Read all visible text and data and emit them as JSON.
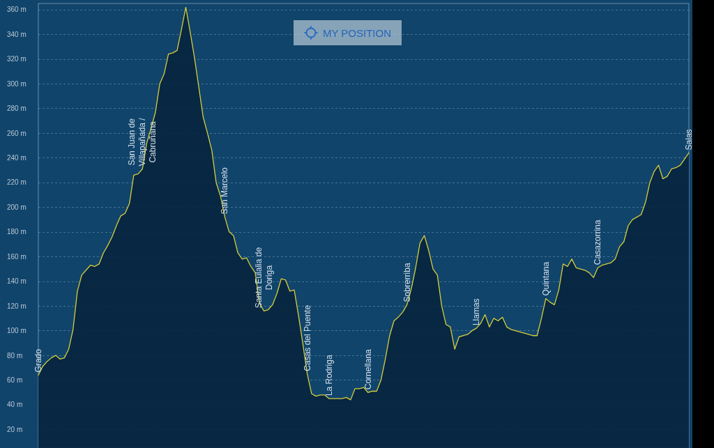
{
  "chart_data": {
    "type": "area",
    "categories": [
      "Grado",
      null,
      null,
      null,
      null,
      null,
      null,
      null,
      null,
      null,
      null,
      null,
      null,
      null,
      null,
      null,
      null,
      null,
      null,
      null,
      null,
      null,
      null,
      null,
      "San Juan de\nVillapañada /\nCabruñana",
      null,
      null,
      null,
      null,
      null,
      null,
      null,
      null,
      null,
      null,
      null,
      null,
      null,
      null,
      null,
      null,
      null,
      null,
      "San Marcelo",
      null,
      null,
      null,
      null,
      null,
      null,
      null,
      null,
      "Santa Eulalia de\nDoriga",
      null,
      null,
      null,
      null,
      null,
      null,
      null,
      null,
      null,
      "Casas del Puente",
      null,
      null,
      null,
      null,
      "La Rodriga",
      null,
      null,
      null,
      null,
      null,
      null,
      null,
      null,
      "Cornellana",
      null,
      null,
      null,
      null,
      null,
      null,
      null,
      null,
      "Sobrerriba",
      null,
      null,
      null,
      null,
      null,
      null,
      null,
      null,
      null,
      null,
      null,
      null,
      null,
      null,
      null,
      "Llamas",
      null,
      null,
      null,
      null,
      null,
      null,
      null,
      null,
      null,
      null,
      null,
      null,
      null,
      null,
      null,
      "Quintana",
      null,
      null,
      null,
      null,
      null,
      null,
      null,
      null,
      null,
      null,
      null,
      "Casazorrina",
      null,
      null,
      null,
      null,
      null,
      null,
      null,
      null,
      null,
      null,
      null,
      null,
      null,
      null,
      null,
      null,
      null,
      null,
      null,
      null,
      "Salas"
    ],
    "series": [
      {
        "color": "#06223b",
        "values": [
          64,
          71,
          75,
          78,
          80,
          77,
          78,
          85,
          101,
          132,
          145,
          149,
          153,
          152,
          154,
          163,
          169,
          176,
          185,
          193,
          195,
          203,
          226,
          227,
          231,
          252,
          264,
          277,
          300,
          308,
          324,
          325,
          327,
          344,
          362,
          342,
          321,
          297,
          273,
          260,
          246,
          220,
          209,
          192,
          180,
          177,
          163,
          158,
          159,
          152,
          147,
          122,
          116,
          117,
          121,
          130,
          142,
          141,
          132,
          133,
          112,
          89,
          65,
          49,
          47,
          48,
          48,
          45,
          45,
          45,
          45,
          46,
          44,
          53,
          53,
          54,
          50,
          51,
          51,
          60,
          77,
          96,
          108,
          111,
          115,
          121,
          134,
          151,
          171,
          177,
          165,
          150,
          145,
          120,
          105,
          103,
          85,
          95,
          96,
          97,
          100,
          102,
          106,
          113,
          103,
          110,
          108,
          111,
          103,
          101,
          100,
          99,
          98,
          97,
          96,
          96,
          110,
          126,
          123,
          121,
          133,
          154,
          152,
          158,
          151,
          150,
          149,
          147,
          143,
          151,
          153,
          154,
          155,
          158,
          168,
          172,
          185,
          190,
          192,
          194,
          204,
          220,
          229,
          234,
          223,
          225,
          231,
          232,
          234,
          239,
          244
        ]
      },
      {
        "type": "line",
        "color": "#d8ce3c",
        "values": [
          64,
          71,
          75,
          78,
          80,
          77,
          78,
          85,
          101,
          132,
          145,
          149,
          153,
          152,
          154,
          163,
          169,
          176,
          185,
          193,
          195,
          203,
          226,
          227,
          231,
          252,
          264,
          277,
          300,
          308,
          324,
          325,
          327,
          344,
          362,
          342,
          321,
          297,
          273,
          260,
          246,
          220,
          209,
          192,
          180,
          177,
          163,
          158,
          159,
          152,
          147,
          122,
          116,
          117,
          121,
          130,
          142,
          141,
          132,
          133,
          112,
          89,
          65,
          49,
          47,
          48,
          48,
          45,
          45,
          45,
          45,
          46,
          44,
          53,
          53,
          54,
          50,
          51,
          51,
          60,
          77,
          96,
          108,
          111,
          115,
          121,
          134,
          151,
          171,
          177,
          165,
          150,
          145,
          120,
          105,
          103,
          85,
          95,
          96,
          97,
          100,
          102,
          106,
          113,
          103,
          110,
          108,
          111,
          103,
          101,
          100,
          99,
          98,
          97,
          96,
          96,
          110,
          126,
          123,
          121,
          133,
          154,
          152,
          158,
          151,
          150,
          149,
          147,
          143,
          151,
          153,
          154,
          155,
          158,
          168,
          172,
          185,
          190,
          192,
          194,
          204,
          220,
          229,
          234,
          223,
          225,
          231,
          232,
          234,
          239,
          244
        ]
      }
    ],
    "ylim": [
      5,
      365
    ],
    "yticks": [
      {
        "value": 20,
        "label": "20 m"
      },
      {
        "value": 40,
        "label": "40 m"
      },
      {
        "value": 60,
        "label": "60 m"
      },
      {
        "value": 80,
        "label": "80 m"
      },
      {
        "value": 100,
        "label": "100 m"
      },
      {
        "value": 120,
        "label": "120 m"
      },
      {
        "value": 140,
        "label": "140 m"
      },
      {
        "value": 160,
        "label": "160 m"
      },
      {
        "value": 180,
        "label": "180 m"
      },
      {
        "value": 200,
        "label": "200 m"
      },
      {
        "value": 220,
        "label": "220 m"
      },
      {
        "value": 240,
        "label": "240 m"
      },
      {
        "value": 260,
        "label": "260 m"
      },
      {
        "value": 280,
        "label": "280 m"
      },
      {
        "value": 300,
        "label": "300 m"
      },
      {
        "value": 320,
        "label": "320 m"
      },
      {
        "value": 340,
        "label": "340 m"
      },
      {
        "value": 360,
        "label": "360 m"
      }
    ],
    "grid": "y",
    "annotations": [
      "MY POSITION"
    ]
  }
}
